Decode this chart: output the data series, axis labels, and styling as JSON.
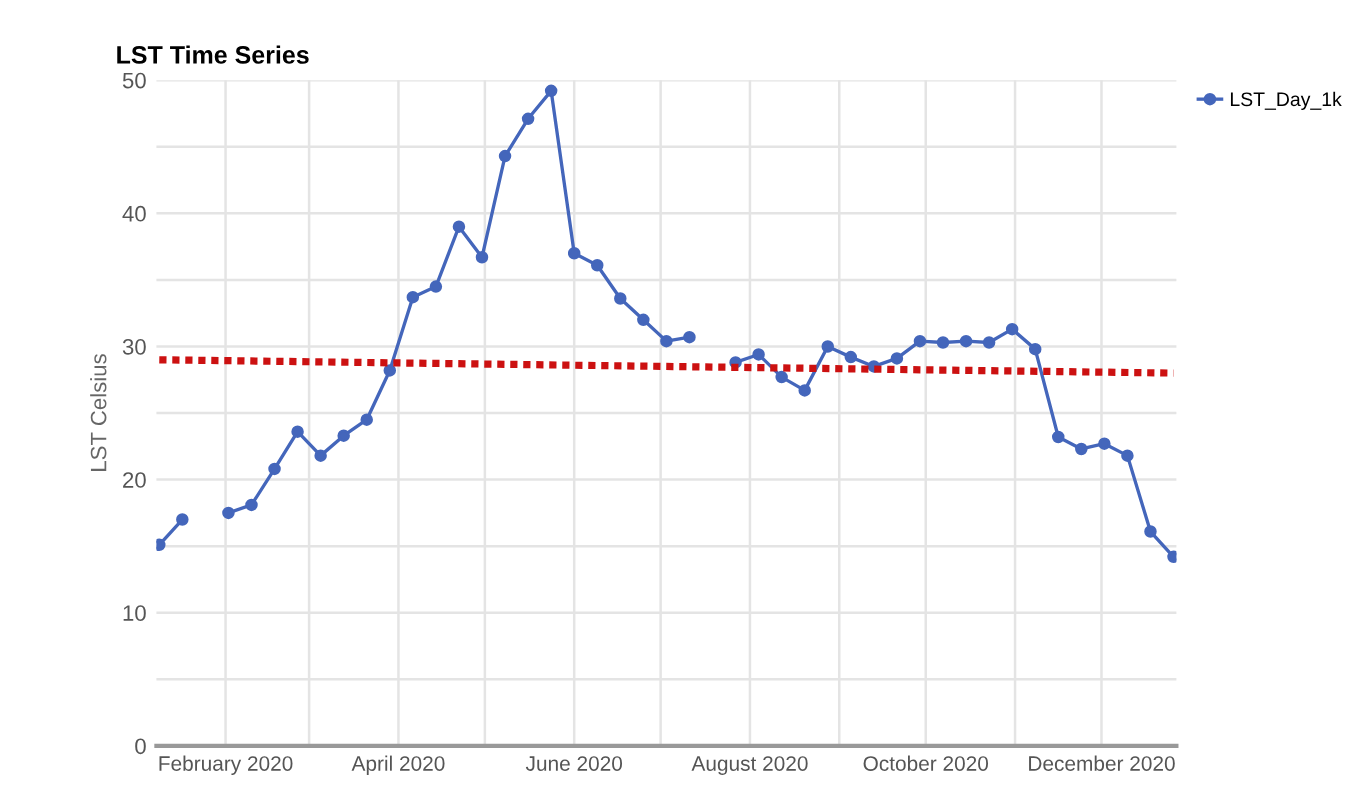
{
  "chart_data": {
    "type": "line",
    "title": "LST Time Series",
    "ylabel": "LST Celsius",
    "x": [
      "2020-01-09",
      "2020-01-17",
      "2020-01-25",
      "2020-02-02",
      "2020-02-10",
      "2020-02-18",
      "2020-02-26",
      "2020-03-05",
      "2020-03-13",
      "2020-03-21",
      "2020-03-29",
      "2020-04-06",
      "2020-04-14",
      "2020-04-22",
      "2020-04-30",
      "2020-05-08",
      "2020-05-16",
      "2020-05-24",
      "2020-06-01",
      "2020-06-09",
      "2020-06-17",
      "2020-06-25",
      "2020-07-03",
      "2020-07-11",
      "2020-07-19",
      "2020-07-27",
      "2020-08-04",
      "2020-08-12",
      "2020-08-20",
      "2020-08-28",
      "2020-09-05",
      "2020-09-13",
      "2020-09-21",
      "2020-09-29",
      "2020-10-07",
      "2020-10-15",
      "2020-10-23",
      "2020-10-31",
      "2020-11-08",
      "2020-11-16",
      "2020-11-24",
      "2020-12-02",
      "2020-12-10",
      "2020-12-18",
      "2020-12-26"
    ],
    "series": [
      {
        "name": "LST_Day_1k",
        "color": "#4466bb",
        "marker": "circle",
        "values": [
          15.1,
          17.0,
          null,
          17.5,
          18.1,
          20.8,
          23.6,
          21.8,
          23.3,
          24.5,
          28.2,
          33.7,
          34.5,
          39.0,
          36.7,
          44.3,
          47.1,
          49.2,
          37.0,
          36.1,
          33.6,
          32.0,
          30.4,
          30.7,
          null,
          28.8,
          29.4,
          27.7,
          26.7,
          30.0,
          29.2,
          28.5,
          29.1,
          30.4,
          30.3,
          30.4,
          30.3,
          31.3,
          29.8,
          23.2,
          22.3,
          22.7,
          21.8,
          16.1,
          14.2
        ]
      },
      {
        "type": "line",
        "color": "#cc1111",
        "line_style": "dotted",
        "marker": "none",
        "x": [
          "2020-01-09",
          "2020-12-26"
        ],
        "values": [
          29.0,
          28.0
        ]
      }
    ],
    "xlim": [
      "2020-01-08",
      "2020-12-27"
    ],
    "xticks": [
      {
        "value": "2020-02-01",
        "label": "February 2020"
      },
      {
        "value": "2020-03-01",
        "label": null
      },
      {
        "value": "2020-04-01",
        "label": "April 2020"
      },
      {
        "value": "2020-05-01",
        "label": null
      },
      {
        "value": "2020-06-01",
        "label": "June 2020"
      },
      {
        "value": "2020-07-01",
        "label": null
      },
      {
        "value": "2020-08-01",
        "label": "August 2020"
      },
      {
        "value": "2020-09-01",
        "label": null
      },
      {
        "value": "2020-10-01",
        "label": "October 2020"
      },
      {
        "value": "2020-11-01",
        "label": null
      },
      {
        "value": "2020-12-01",
        "label": "December 2020"
      }
    ],
    "ylim": [
      0,
      50
    ],
    "yticks": [
      0,
      {
        "value": 5,
        "label": null
      },
      10,
      {
        "value": 15,
        "label": null
      },
      20,
      {
        "value": 25,
        "label": null
      },
      30,
      {
        "value": 35,
        "label": null
      },
      40,
      {
        "value": 45,
        "label": null
      },
      50
    ],
    "grid": true,
    "legend": "top right"
  }
}
